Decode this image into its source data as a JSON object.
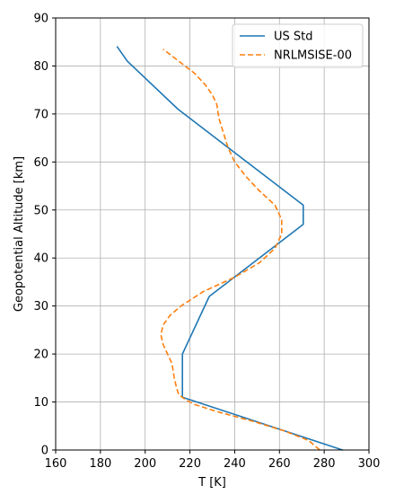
{
  "chart_data": {
    "type": "line",
    "title": "",
    "xlabel": "T [K]",
    "ylabel": "Geopotential Altitude [km]",
    "xlim": [
      160,
      300
    ],
    "ylim": [
      0,
      90
    ],
    "xticks": [
      160,
      180,
      200,
      220,
      240,
      260,
      280,
      300
    ],
    "yticks": [
      0,
      10,
      20,
      30,
      40,
      50,
      60,
      70,
      80,
      90
    ],
    "grid": true,
    "legend_position": "top-right",
    "series": [
      {
        "name": "US Std",
        "color": "#1f77b4",
        "style": "solid",
        "x": [
          288.15,
          216.65,
          216.65,
          228.65,
          270.65,
          270.65,
          214.65,
          192.0,
          187.5
        ],
        "y": [
          0,
          11,
          20,
          32,
          47,
          51,
          71,
          81,
          84
        ]
      },
      {
        "name": "NRLMSISE-00",
        "color": "#ff7f0e",
        "style": "dashed",
        "x": [
          278,
          273,
          262,
          248,
          232,
          222,
          218,
          215,
          214,
          213,
          212,
          210,
          208,
          207,
          208,
          211,
          216,
          226,
          240,
          251,
          258,
          261,
          261,
          258,
          251,
          245,
          240,
          237,
          235,
          233,
          232,
          230,
          227,
          222,
          215,
          208
        ],
        "y": [
          0,
          2,
          4,
          6,
          8,
          9.5,
          10.5,
          11.5,
          13,
          15,
          18,
          20,
          22,
          24,
          26,
          28,
          30,
          33,
          36,
          39,
          42,
          45,
          48,
          51,
          54,
          57,
          60,
          63,
          66,
          69,
          72,
          74,
          76,
          78.5,
          81,
          83.5
        ]
      }
    ]
  }
}
